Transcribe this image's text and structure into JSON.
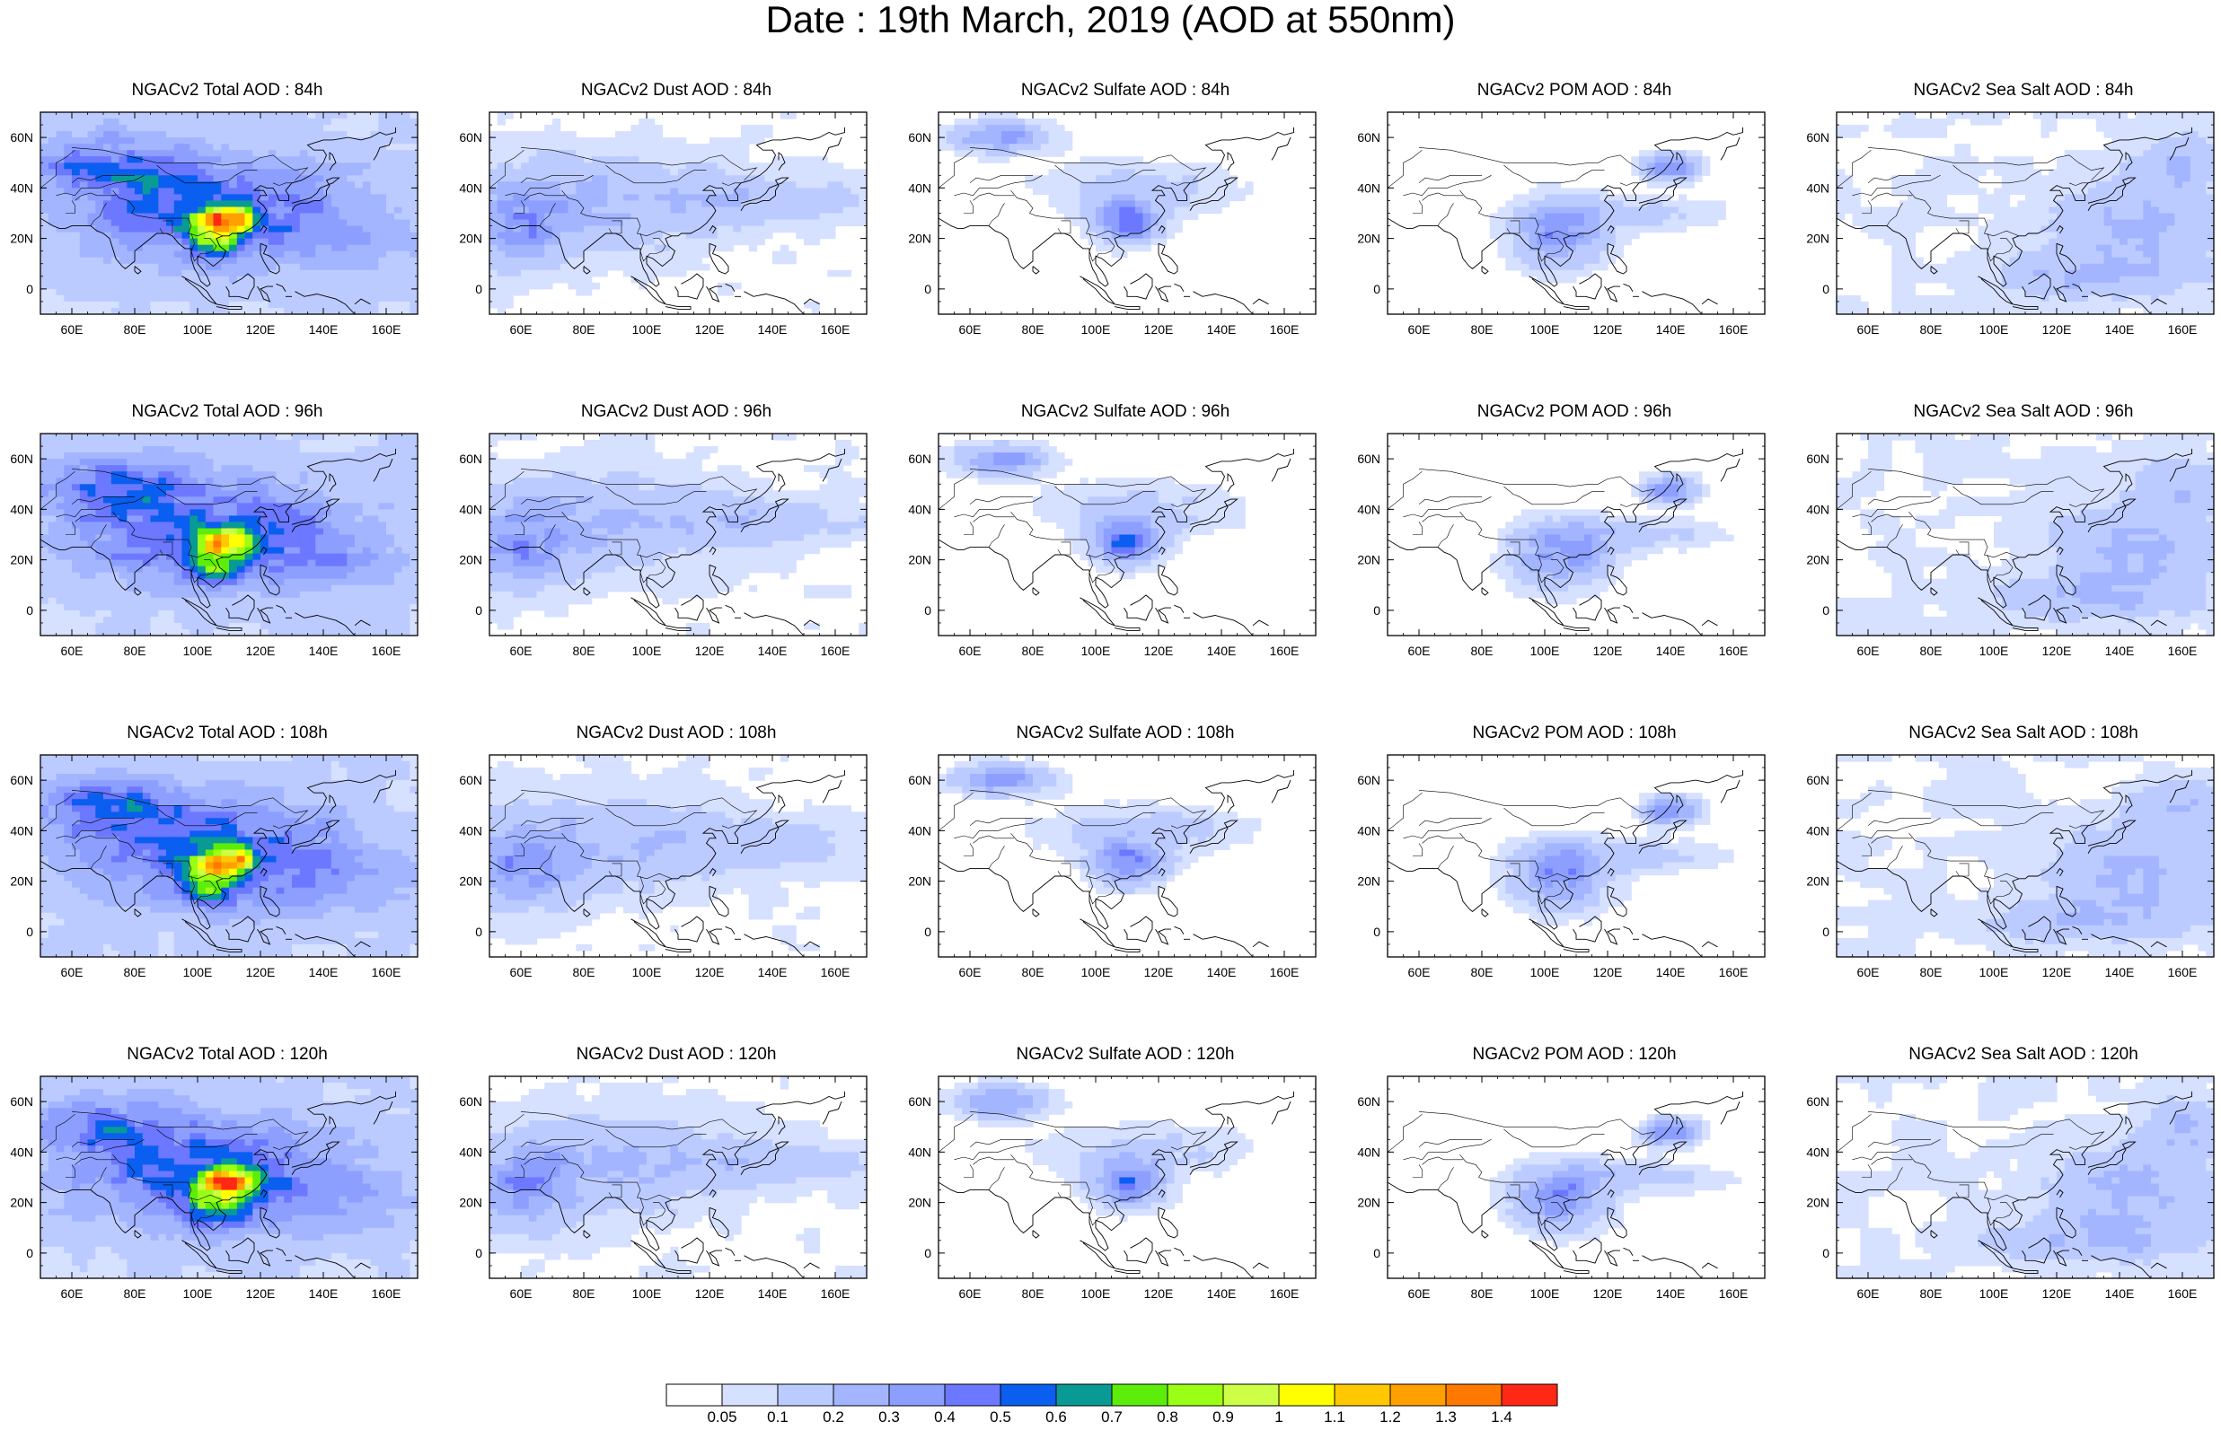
{
  "page": {
    "title": "Date : 19th March, 2019 (AOD at 550nm)"
  },
  "panels": [
    {
      "title": "NGACv2 Total AOD : 84h",
      "species": "total",
      "forecast_hour": 84
    },
    {
      "title": "NGACv2 Dust AOD : 84h",
      "species": "dust",
      "forecast_hour": 84
    },
    {
      "title": "NGACv2 Sulfate AOD : 84h",
      "species": "sulfate",
      "forecast_hour": 84
    },
    {
      "title": "NGACv2 POM AOD : 84h",
      "species": "pom",
      "forecast_hour": 84
    },
    {
      "title": "NGACv2 Sea Salt AOD : 84h",
      "species": "seasalt",
      "forecast_hour": 84
    },
    {
      "title": "NGACv2 Total AOD : 96h",
      "species": "total",
      "forecast_hour": 96
    },
    {
      "title": "NGACv2 Dust AOD : 96h",
      "species": "dust",
      "forecast_hour": 96
    },
    {
      "title": "NGACv2 Sulfate AOD : 96h",
      "species": "sulfate",
      "forecast_hour": 96
    },
    {
      "title": "NGACv2 POM AOD : 96h",
      "species": "pom",
      "forecast_hour": 96
    },
    {
      "title": "NGACv2 Sea Salt AOD : 96h",
      "species": "seasalt",
      "forecast_hour": 96
    },
    {
      "title": "NGACv2 Total AOD : 108h",
      "species": "total",
      "forecast_hour": 108
    },
    {
      "title": "NGACv2 Dust AOD : 108h",
      "species": "dust",
      "forecast_hour": 108
    },
    {
      "title": "NGACv2 Sulfate AOD : 108h",
      "species": "sulfate",
      "forecast_hour": 108
    },
    {
      "title": "NGACv2 POM AOD : 108h",
      "species": "pom",
      "forecast_hour": 108
    },
    {
      "title": "NGACv2 Sea Salt AOD : 108h",
      "species": "seasalt",
      "forecast_hour": 108
    },
    {
      "title": "NGACv2 Total AOD : 120h",
      "species": "total",
      "forecast_hour": 120
    },
    {
      "title": "NGACv2 Dust AOD : 120h",
      "species": "dust",
      "forecast_hour": 120
    },
    {
      "title": "NGACv2 Sulfate AOD : 120h",
      "species": "sulfate",
      "forecast_hour": 120
    },
    {
      "title": "NGACv2 POM AOD : 120h",
      "species": "pom",
      "forecast_hour": 120
    },
    {
      "title": "NGACv2 Sea Salt  AOD : 120h",
      "species": "seasalt",
      "forecast_hour": 120
    }
  ],
  "map": {
    "lon_range": [
      50,
      170
    ],
    "lat_range": [
      -10,
      70
    ],
    "lon_ticks": [
      60,
      80,
      100,
      120,
      140,
      160
    ],
    "lon_tick_labels": [
      "60E",
      "80E",
      "100E",
      "120E",
      "140E",
      "160E"
    ],
    "lat_ticks": [
      0,
      20,
      40,
      60
    ],
    "lat_tick_labels": [
      "0",
      "20N",
      "40N",
      "60N"
    ]
  },
  "colorbar": {
    "labels": [
      "0.05",
      "0.1",
      "0.2",
      "0.3",
      "0.4",
      "0.5",
      "0.6",
      "0.7",
      "0.8",
      "0.9",
      "1",
      "1.1",
      "1.2",
      "1.3",
      "1.4"
    ],
    "colors": [
      "#ffffff",
      "#d6e0ff",
      "#bccbff",
      "#a3b5ff",
      "#8c9fff",
      "#6b78ff",
      "#0a5ef0",
      "#0a9a96",
      "#5cee0a",
      "#9aff14",
      "#ccff46",
      "#ffff00",
      "#ffc800",
      "#ffa000",
      "#ff7800",
      "#ff2814"
    ]
  },
  "aerosol_features": {
    "total": [
      {
        "lon": 90,
        "lat": 30,
        "a": 35,
        "b": 20,
        "v": 0.25
      },
      {
        "lon": 115,
        "lat": 35,
        "a": 40,
        "b": 20,
        "v": 0.22
      },
      {
        "lon": 140,
        "lat": 20,
        "a": 35,
        "b": 15,
        "v": 0.15
      },
      {
        "lon": 70,
        "lat": 50,
        "a": 25,
        "b": 12,
        "v": 0.3
      },
      {
        "lon": 110,
        "lat": 28,
        "a": 8,
        "b": 5,
        "v": 0.82
      },
      {
        "lon": 105,
        "lat": 18,
        "a": 8,
        "b": 8,
        "v": 0.45
      }
    ],
    "dust": [
      {
        "lon": 85,
        "lat": 35,
        "a": 40,
        "b": 18,
        "v": 0.17
      },
      {
        "lon": 60,
        "lat": 25,
        "a": 15,
        "b": 15,
        "v": 0.25
      },
      {
        "lon": 140,
        "lat": 35,
        "a": 30,
        "b": 8,
        "v": 0.12
      }
    ],
    "sulfate": [
      {
        "lon": 110,
        "lat": 27,
        "a": 10,
        "b": 8,
        "v": 0.45
      },
      {
        "lon": 70,
        "lat": 60,
        "a": 14,
        "b": 6,
        "v": 0.3
      },
      {
        "lon": 115,
        "lat": 40,
        "a": 30,
        "b": 10,
        "v": 0.12
      }
    ],
    "pom": [
      {
        "lon": 105,
        "lat": 22,
        "a": 14,
        "b": 12,
        "v": 0.35
      },
      {
        "lon": 140,
        "lat": 48,
        "a": 8,
        "b": 5,
        "v": 0.4
      },
      {
        "lon": 130,
        "lat": 30,
        "a": 25,
        "b": 6,
        "v": 0.12
      }
    ],
    "seasalt": [
      {
        "lon": 145,
        "lat": 25,
        "a": 25,
        "b": 18,
        "v": 0.17
      },
      {
        "lon": 130,
        "lat": 5,
        "a": 30,
        "b": 8,
        "v": 0.15
      },
      {
        "lon": 160,
        "lat": 50,
        "a": 12,
        "b": 10,
        "v": 0.15
      }
    ]
  }
}
